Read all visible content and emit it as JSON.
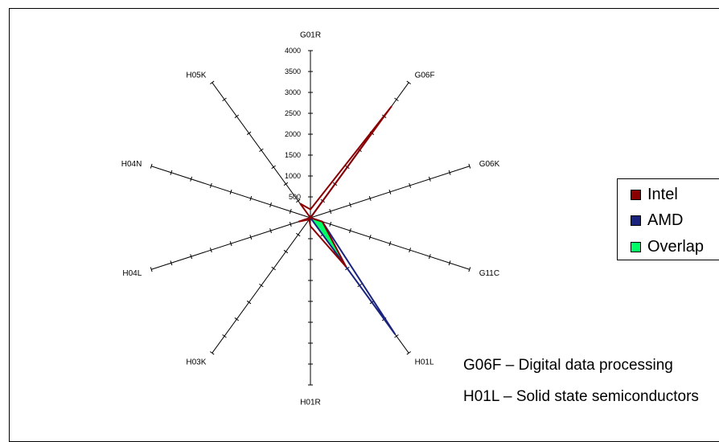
{
  "chart_data": {
    "type": "radar",
    "axes": [
      "G01R",
      "G06F",
      "G06K",
      "G11C",
      "H01L",
      "H01R",
      "H03K",
      "H04L",
      "H04N",
      "H05K"
    ],
    "r_ticks": [
      500,
      1000,
      1500,
      2000,
      2500,
      3000,
      3500,
      4000
    ],
    "r_tick_labels": [
      "500",
      "1000",
      "1500",
      "2000",
      "2500",
      "3000",
      "3500",
      "4000"
    ],
    "rlim": [
      0,
      4000
    ],
    "series": [
      {
        "name": "Intel",
        "values": [
          200,
          3300,
          0,
          300,
          1450,
          200,
          50,
          300,
          0,
          420
        ],
        "color": "#8B0000"
      },
      {
        "name": "AMD",
        "values": [
          0,
          2350,
          0,
          300,
          3450,
          0,
          0,
          200,
          0,
          0
        ],
        "color": "#1a237e"
      },
      {
        "name": "Overlap",
        "values": [
          0,
          2350,
          0,
          300,
          1450,
          0,
          0,
          200,
          0,
          0
        ],
        "color": "#00ff66"
      }
    ],
    "legend_position": "right"
  },
  "legend": {
    "items": [
      "Intel",
      "AMD",
      "Overlap"
    ]
  },
  "notes": [
    "G06F – Digital data processing",
    "H01L – Solid state semiconductors"
  ]
}
